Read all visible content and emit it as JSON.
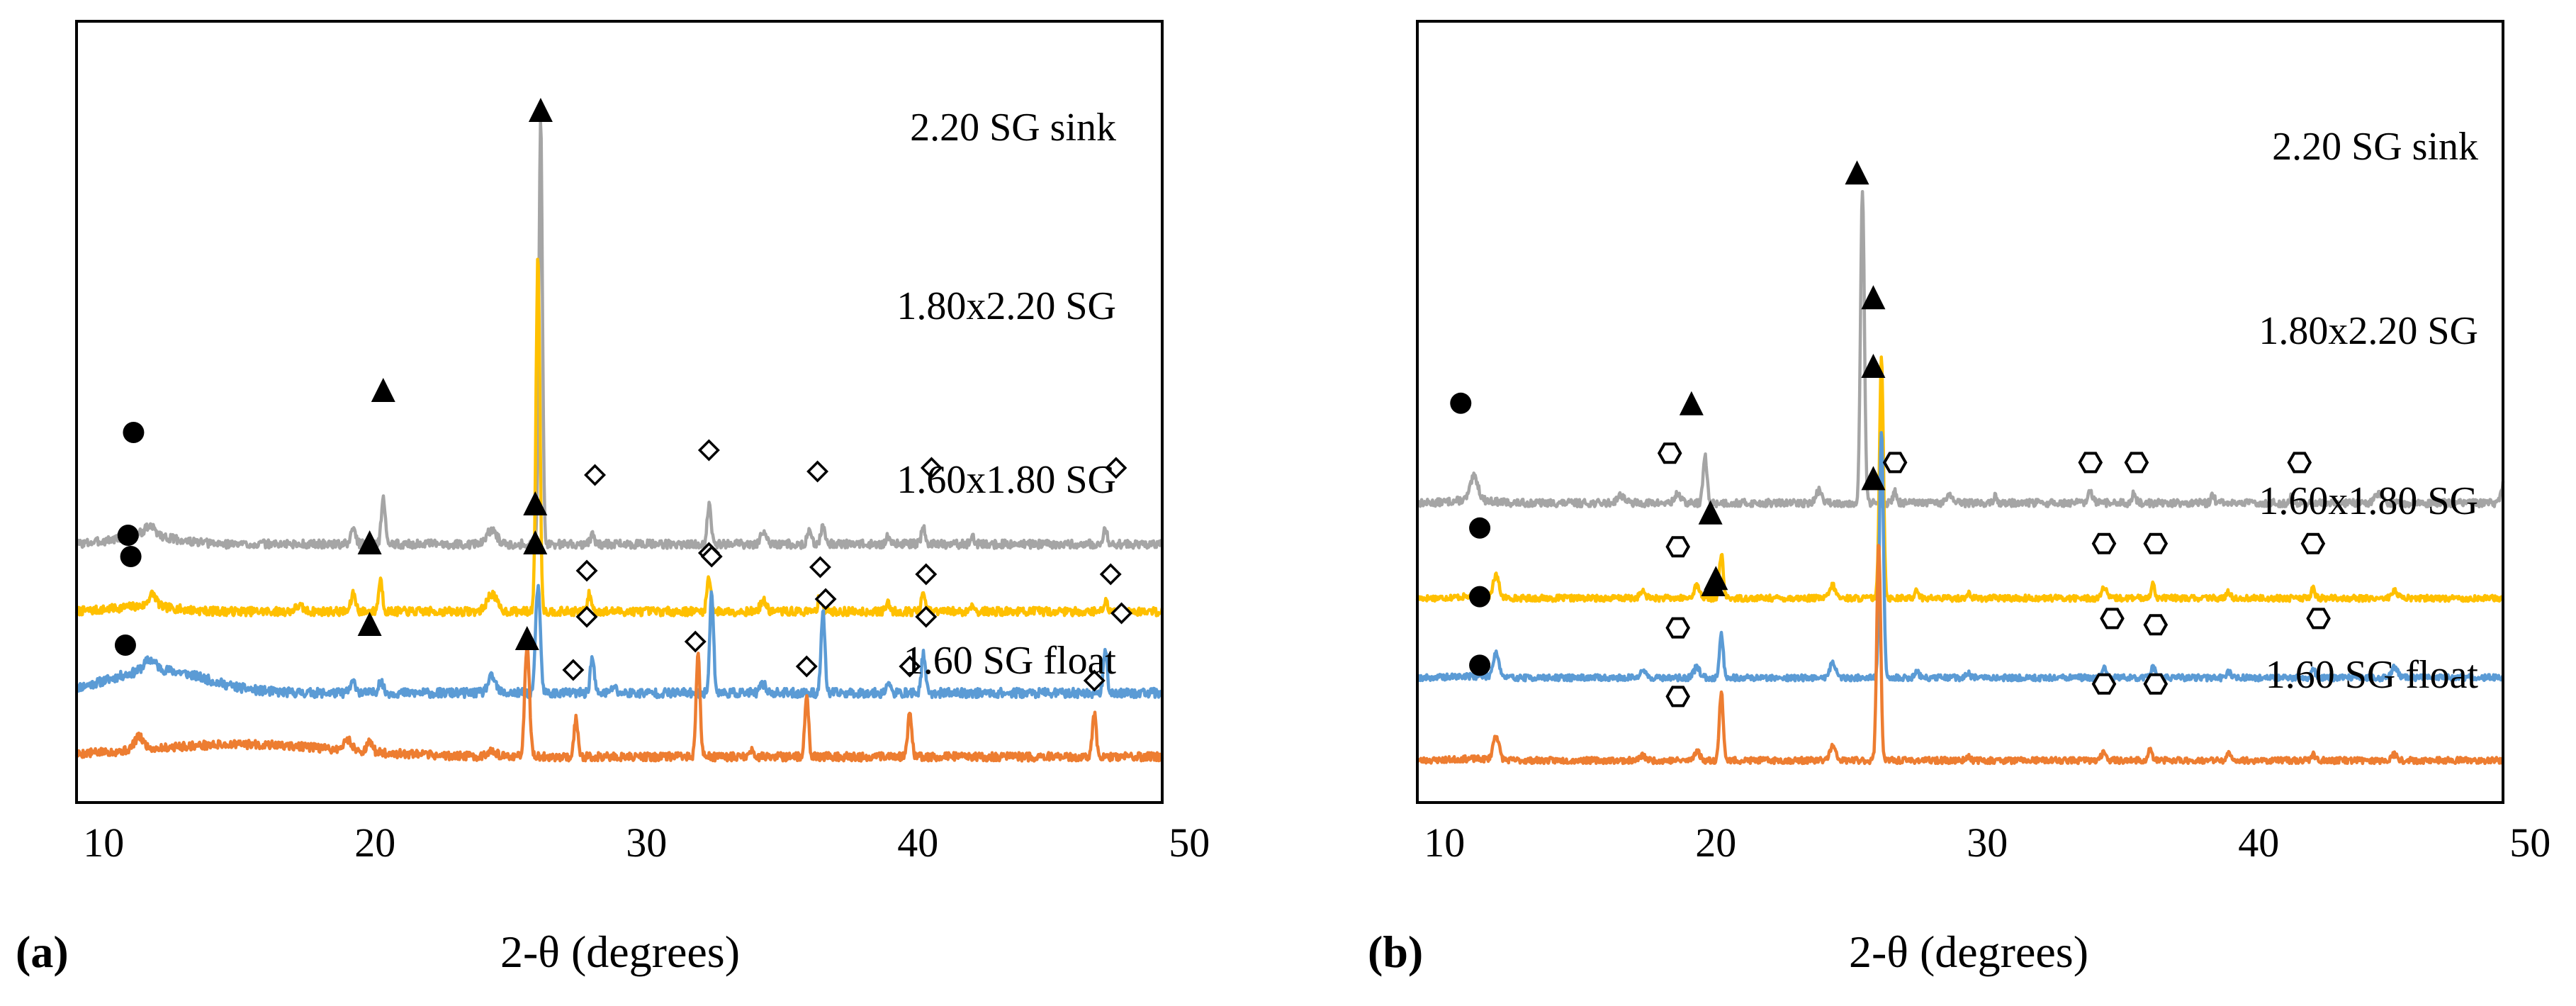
{
  "chart_data": [
    {
      "id": "a",
      "type": "line",
      "panel_label": "(a)",
      "xlabel": "2-θ (degrees)",
      "ylabel": "",
      "xlim": [
        9,
        49
      ],
      "xticks": [
        10,
        20,
        30,
        40,
        50
      ],
      "tick_labels": [
        "10",
        "20",
        "30",
        "40",
        "50"
      ],
      "series": [
        {
          "name": "2.20 SG sink",
          "color": "#A5A5A5",
          "baseline": 0.85,
          "hump": [
            11.5,
            0.25,
            1.5
          ],
          "peaks": [
            [
              11.7,
              0.25,
              0.3
            ],
            [
              19.2,
              0.45,
              0.12
            ],
            [
              20.3,
              1.3,
              0.1
            ],
            [
              24.3,
              0.4,
              0.25
            ],
            [
              26.1,
              12.0,
              0.09
            ],
            [
              28.0,
              0.25,
              0.1
            ],
            [
              32.3,
              1.1,
              0.1
            ],
            [
              34.3,
              0.35,
              0.15
            ],
            [
              36.0,
              0.45,
              0.1
            ],
            [
              36.5,
              0.55,
              0.1
            ],
            [
              38.9,
              0.25,
              0.1
            ],
            [
              40.2,
              0.5,
              0.1
            ],
            [
              42.0,
              0.2,
              0.1
            ],
            [
              46.9,
              0.4,
              0.1
            ]
          ],
          "noise": 0.12,
          "seed": 3
        },
        {
          "name": "1.80x2.20 SG",
          "color": "#FFC000",
          "baseline": 0.95,
          "hump": [
            11.5,
            0.15,
            1.5
          ],
          "peaks": [
            [
              11.8,
              0.35,
              0.2
            ],
            [
              17.2,
              0.15,
              0.2
            ],
            [
              19.2,
              0.5,
              0.12
            ],
            [
              20.2,
              0.9,
              0.1
            ],
            [
              24.3,
              0.5,
              0.25
            ],
            [
              26.0,
              10.0,
              0.1
            ],
            [
              27.9,
              0.5,
              0.1
            ],
            [
              32.3,
              1.0,
              0.1
            ],
            [
              34.3,
              0.3,
              0.15
            ],
            [
              36.4,
              0.5,
              0.1
            ],
            [
              38.9,
              0.25,
              0.1
            ],
            [
              40.2,
              0.5,
              0.1
            ],
            [
              42.0,
              0.2,
              0.1
            ],
            [
              46.9,
              0.3,
              0.1
            ]
          ],
          "noise": 0.12,
          "seed": 7
        },
        {
          "name": "1.60x1.80 SG",
          "color": "#5B9BD5",
          "baseline": 0.85,
          "hump": [
            12.0,
            0.65,
            2.5
          ],
          "peaks": [
            [
              11.7,
              0.3,
              0.3
            ],
            [
              19.2,
              0.3,
              0.15
            ],
            [
              20.2,
              0.35,
              0.12
            ],
            [
              24.3,
              0.45,
              0.2
            ],
            [
              26.0,
              3.0,
              0.12
            ],
            [
              28.0,
              1.0,
              0.1
            ],
            [
              28.8,
              0.2,
              0.1
            ],
            [
              32.4,
              2.8,
              0.1
            ],
            [
              34.3,
              0.25,
              0.15
            ],
            [
              36.5,
              2.3,
              0.1
            ],
            [
              38.9,
              0.3,
              0.1
            ],
            [
              40.2,
              1.1,
              0.1
            ],
            [
              46.9,
              1.2,
              0.1
            ]
          ],
          "noise": 0.13,
          "seed": 11
        },
        {
          "name": "1.60 SG float",
          "color": "#ED7D31",
          "baseline": 0.85,
          "hump": [
            15.0,
            0.35,
            5.0
          ],
          "peaks": [
            [
              11.3,
              0.35,
              0.25
            ],
            [
              19.0,
              0.3,
              0.2
            ],
            [
              19.8,
              0.25,
              0.15
            ],
            [
              24.3,
              0.2,
              0.2
            ],
            [
              25.6,
              3.2,
              0.12
            ],
            [
              27.4,
              1.1,
              0.1
            ],
            [
              31.9,
              2.9,
              0.1
            ],
            [
              33.9,
              0.2,
              0.1
            ],
            [
              35.9,
              1.7,
              0.1
            ],
            [
              39.7,
              1.3,
              0.1
            ],
            [
              46.5,
              1.2,
              0.1
            ]
          ],
          "noise": 0.12,
          "seed": 5
        }
      ],
      "annotations": [
        {
          "symbol": "circle",
          "x": 11.1,
          "series": 0,
          "y": 4.0
        },
        {
          "symbol": "triangle",
          "x": 20.3,
          "series": 0,
          "y": 5.2
        },
        {
          "symbol": "triangle",
          "x": 26.1,
          "series": 0,
          "y": 13.1
        },
        {
          "symbol": "diamond",
          "x": 28.1,
          "series": 0,
          "y": 2.8
        },
        {
          "symbol": "diamond",
          "x": 32.3,
          "series": 0,
          "y": 3.5
        },
        {
          "symbol": "diamond",
          "x": 36.3,
          "series": 0,
          "y": 2.9
        },
        {
          "symbol": "diamond",
          "x": 40.5,
          "series": 0,
          "y": 3.0
        },
        {
          "symbol": "diamond",
          "x": 47.3,
          "series": 0,
          "y": 3.0
        },
        {
          "symbol": "triangle",
          "x": 25.9,
          "series": 0,
          "y": 0.9
        },
        {
          "symbol": "circle",
          "x": 10.9,
          "series": 1,
          "y": 3.1
        },
        {
          "symbol": "triangle",
          "x": 19.8,
          "series": 1,
          "y": 2.9
        },
        {
          "symbol": "diamond",
          "x": 27.8,
          "series": 1,
          "y": 2.1
        },
        {
          "symbol": "diamond",
          "x": 32.3,
          "series": 1,
          "y": 2.6
        },
        {
          "symbol": "diamond",
          "x": 36.4,
          "series": 1,
          "y": 2.2
        },
        {
          "symbol": "diamond",
          "x": 40.3,
          "series": 1,
          "y": 2.0
        },
        {
          "symbol": "diamond",
          "x": 47.1,
          "series": 1,
          "y": 2.0
        },
        {
          "symbol": "circle",
          "x": 11.0,
          "series": 2,
          "y": 4.7
        },
        {
          "symbol": "triangle",
          "x": 19.8,
          "series": 2,
          "y": 2.8
        },
        {
          "symbol": "triangle",
          "x": 25.9,
          "series": 2,
          "y": 6.2
        },
        {
          "symbol": "diamond",
          "x": 27.8,
          "series": 2,
          "y": 3.0
        },
        {
          "symbol": "diamond",
          "x": 32.4,
          "series": 2,
          "y": 4.7
        },
        {
          "symbol": "diamond",
          "x": 36.6,
          "series": 2,
          "y": 3.5
        },
        {
          "symbol": "diamond",
          "x": 40.3,
          "series": 2,
          "y": 3.0
        },
        {
          "symbol": "diamond",
          "x": 47.5,
          "series": 2,
          "y": 3.1
        },
        {
          "symbol": "circle",
          "x": 10.8,
          "series": 3,
          "y": 4.0
        },
        {
          "symbol": "triangle",
          "x": 25.6,
          "series": 3,
          "y": 4.2
        },
        {
          "symbol": "diamond",
          "x": 27.3,
          "series": 3,
          "y": 3.3
        },
        {
          "symbol": "diamond",
          "x": 31.8,
          "series": 3,
          "y": 4.1
        },
        {
          "symbol": "diamond",
          "x": 35.9,
          "series": 3,
          "y": 3.4
        },
        {
          "symbol": "diamond",
          "x": 39.7,
          "series": 3,
          "y": 3.4
        },
        {
          "symbol": "diamond",
          "x": 46.5,
          "series": 3,
          "y": 3.0
        }
      ]
    },
    {
      "id": "b",
      "type": "line",
      "panel_label": "(b)",
      "xlabel": "2-θ (degrees)",
      "ylabel": "",
      "xlim": [
        9,
        49
      ],
      "xticks": [
        10,
        20,
        30,
        40,
        50
      ],
      "tick_labels": [
        "10",
        "20",
        "30",
        "40",
        "50"
      ],
      "series": [
        {
          "name": "2.20 SG sink",
          "color": "#A5A5A5",
          "baseline": 1.5,
          "hump": [
            11.0,
            0.1,
            1.0
          ],
          "peaks": [
            [
              11.1,
              0.75,
              0.2
            ],
            [
              16.5,
              0.25,
              0.2
            ],
            [
              18.6,
              0.3,
              0.15
            ],
            [
              19.6,
              1.5,
              0.1
            ],
            [
              23.8,
              0.4,
              0.15
            ],
            [
              25.4,
              10.0,
              0.1
            ],
            [
              26.6,
              0.35,
              0.1
            ],
            [
              28.6,
              0.3,
              0.12
            ],
            [
              30.3,
              0.2,
              0.1
            ],
            [
              33.8,
              0.35,
              0.12
            ],
            [
              35.4,
              0.3,
              0.1
            ],
            [
              38.3,
              0.25,
              0.1
            ],
            [
              41.2,
              0.2,
              0.1
            ],
            [
              44.4,
              0.3,
              0.2
            ],
            [
              49.0,
              0.6,
              0.1
            ]
          ],
          "noise": 0.12,
          "seed": 13
        },
        {
          "name": "1.80x2.20 SG",
          "color": "#FFC000",
          "baseline": 0.85,
          "hump": [
            11.0,
            0.05,
            1.0
          ],
          "peaks": [
            [
              11.9,
              0.7,
              0.15
            ],
            [
              17.3,
              0.2,
              0.15
            ],
            [
              19.3,
              0.4,
              0.15
            ],
            [
              20.2,
              1.4,
              0.1
            ],
            [
              24.3,
              0.4,
              0.15
            ],
            [
              26.1,
              7.8,
              0.1
            ],
            [
              27.4,
              0.3,
              0.1
            ],
            [
              29.3,
              0.15,
              0.1
            ],
            [
              34.3,
              0.35,
              0.12
            ],
            [
              36.1,
              0.45,
              0.1
            ],
            [
              38.9,
              0.2,
              0.1
            ],
            [
              42.0,
              0.3,
              0.1
            ],
            [
              45.0,
              0.25,
              0.15
            ]
          ],
          "noise": 0.1,
          "seed": 17
        },
        {
          "name": "1.60x1.80 SG",
          "color": "#5B9BD5",
          "baseline": 0.9,
          "hump": [
            11.0,
            0.05,
            1.0
          ],
          "peaks": [
            [
              11.9,
              0.8,
              0.15
            ],
            [
              17.3,
              0.25,
              0.15
            ],
            [
              19.3,
              0.35,
              0.15
            ],
            [
              20.2,
              1.4,
              0.1
            ],
            [
              24.3,
              0.5,
              0.15
            ],
            [
              26.1,
              7.9,
              0.1
            ],
            [
              27.4,
              0.25,
              0.1
            ],
            [
              29.3,
              0.15,
              0.1
            ],
            [
              34.3,
              0.3,
              0.12
            ],
            [
              36.1,
              0.4,
              0.1
            ],
            [
              38.9,
              0.2,
              0.1
            ],
            [
              42.0,
              0.3,
              0.1
            ],
            [
              45.0,
              0.35,
              0.15
            ]
          ],
          "noise": 0.1,
          "seed": 19
        },
        {
          "name": "1.60 SG float",
          "color": "#ED7D31",
          "baseline": 0.85,
          "hump": [
            11.0,
            0.05,
            1.0
          ],
          "peaks": [
            [
              11.9,
              0.8,
              0.15
            ],
            [
              17.3,
              0.15,
              0.15
            ],
            [
              19.3,
              0.3,
              0.15
            ],
            [
              20.2,
              2.2,
              0.1
            ],
            [
              24.3,
              0.45,
              0.15
            ],
            [
              26.0,
              7.0,
              0.1
            ],
            [
              29.3,
              0.15,
              0.1
            ],
            [
              34.3,
              0.3,
              0.12
            ],
            [
              36.0,
              0.35,
              0.1
            ],
            [
              38.9,
              0.2,
              0.1
            ],
            [
              42.0,
              0.2,
              0.1
            ],
            [
              45.0,
              0.2,
              0.15
            ]
          ],
          "noise": 0.1,
          "seed": 23
        }
      ],
      "annotations": [
        {
          "symbol": "circle",
          "x": 10.6,
          "series": 0,
          "y": 4.7
        },
        {
          "symbol": "hexagon",
          "x": 18.3,
          "series": 0,
          "y": 3.1
        },
        {
          "symbol": "triangle",
          "x": 19.1,
          "series": 0,
          "y": 4.7
        },
        {
          "symbol": "triangle",
          "x": 25.2,
          "series": 0,
          "y": 12.1
        },
        {
          "symbol": "hexagon",
          "x": 26.6,
          "series": 0,
          "y": 2.8
        },
        {
          "symbol": "hexagon",
          "x": 33.8,
          "series": 0,
          "y": 2.8
        },
        {
          "symbol": "hexagon",
          "x": 35.5,
          "series": 0,
          "y": 2.8
        },
        {
          "symbol": "hexagon",
          "x": 41.5,
          "series": 0,
          "y": 2.8
        },
        {
          "symbol": "circle",
          "x": 11.3,
          "series": 1,
          "y": 3.1
        },
        {
          "symbol": "hexagon",
          "x": 18.6,
          "series": 1,
          "y": 2.5
        },
        {
          "symbol": "triangle",
          "x": 19.8,
          "series": 1,
          "y": 3.6
        },
        {
          "symbol": "triangle",
          "x": 25.8,
          "series": 1,
          "y": 10.5
        },
        {
          "symbol": "hexagon",
          "x": 34.3,
          "series": 1,
          "y": 2.6
        },
        {
          "symbol": "hexagon",
          "x": 36.2,
          "series": 1,
          "y": 2.6
        },
        {
          "symbol": "hexagon",
          "x": 42.0,
          "series": 1,
          "y": 2.6
        },
        {
          "symbol": "circle",
          "x": 11.3,
          "series": 2,
          "y": 3.5
        },
        {
          "symbol": "hexagon",
          "x": 18.6,
          "series": 2,
          "y": 2.5
        },
        {
          "symbol": "triangle",
          "x": 19.9,
          "series": 2,
          "y": 3.9
        },
        {
          "symbol": "triangle",
          "x": 25.8,
          "series": 2,
          "y": 10.9
        },
        {
          "symbol": "hexagon",
          "x": 34.6,
          "series": 2,
          "y": 2.8
        },
        {
          "symbol": "hexagon",
          "x": 36.2,
          "series": 2,
          "y": 2.6
        },
        {
          "symbol": "hexagon",
          "x": 42.2,
          "series": 2,
          "y": 2.8
        },
        {
          "symbol": "circle",
          "x": 11.3,
          "series": 3,
          "y": 3.9
        },
        {
          "symbol": "hexagon",
          "x": 18.6,
          "series": 3,
          "y": 2.9
        },
        {
          "symbol": "triangle",
          "x": 20.0,
          "series": 3,
          "y": 6.7
        },
        {
          "symbol": "triangle",
          "x": 25.8,
          "series": 3,
          "y": 9.9
        },
        {
          "symbol": "hexagon",
          "x": 34.3,
          "series": 3,
          "y": 3.3
        },
        {
          "symbol": "hexagon",
          "x": 36.2,
          "series": 3,
          "y": 3.3
        }
      ]
    }
  ]
}
